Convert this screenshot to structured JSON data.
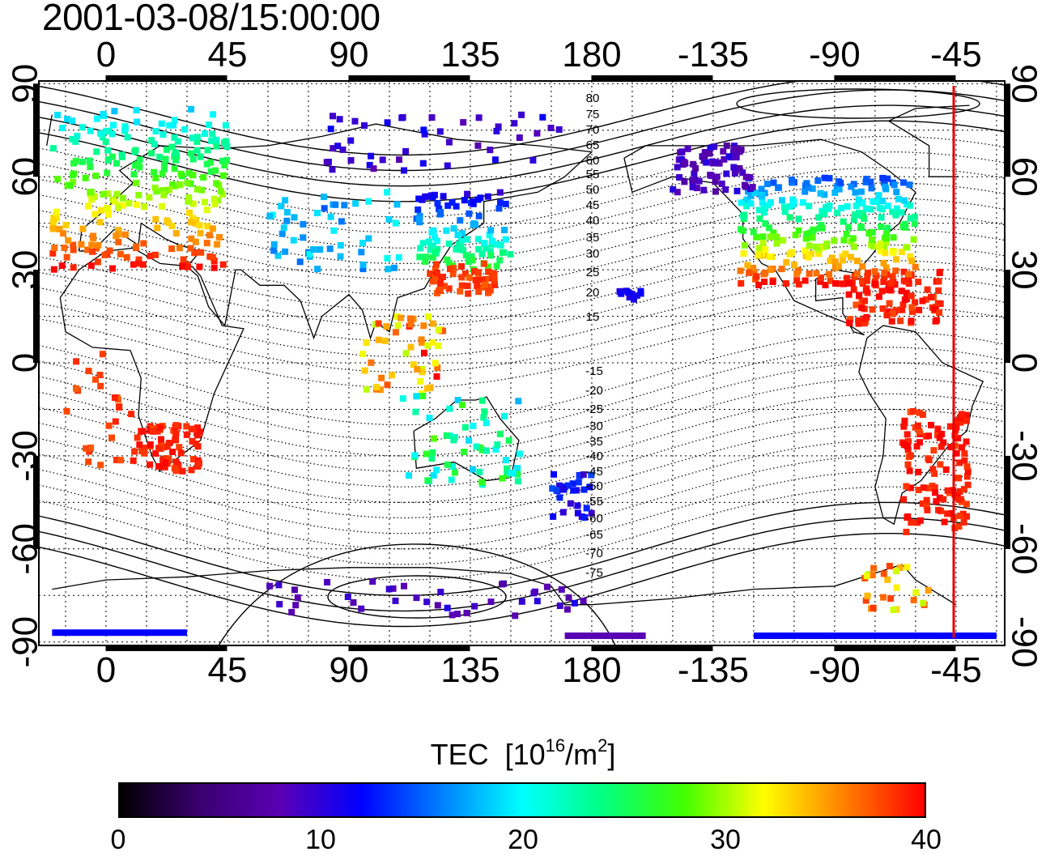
{
  "title": "2001-03-08/15:00:00",
  "map": {
    "lon_ticks": [
      "0",
      "45",
      "90",
      "135",
      "180",
      "-135",
      "-90",
      "-45"
    ],
    "lat_ticks": [
      "90",
      "60",
      "30",
      "0",
      "-30",
      "-60",
      "-90"
    ],
    "mlat_labels_north": [
      "80",
      "75",
      "70",
      "65",
      "60",
      "55",
      "50",
      "45",
      "40",
      "35",
      "30",
      "25",
      "20",
      "15"
    ],
    "mlat_labels_south": [
      "-15",
      "-20",
      "-25",
      "-30",
      "-35",
      "-40",
      "-45",
      "-50",
      "-55",
      "-60",
      "-65",
      "-70",
      "-75"
    ],
    "terminator_color": "#e00000"
  },
  "colorbar": {
    "label": "TEC",
    "unit_prefix": "[10",
    "unit_exp": "16",
    "unit_mid": "/m",
    "unit_exp2": "2",
    "unit_suffix": "]",
    "ticks": [
      "0",
      "10",
      "20",
      "30",
      "40"
    ],
    "colors": [
      "#000000",
      "#3a0070",
      "#5a00b4",
      "#0000ff",
      "#0080ff",
      "#00ffff",
      "#00ff80",
      "#40ff00",
      "#ffff00",
      "#ff8000",
      "#ff0000"
    ]
  }
}
